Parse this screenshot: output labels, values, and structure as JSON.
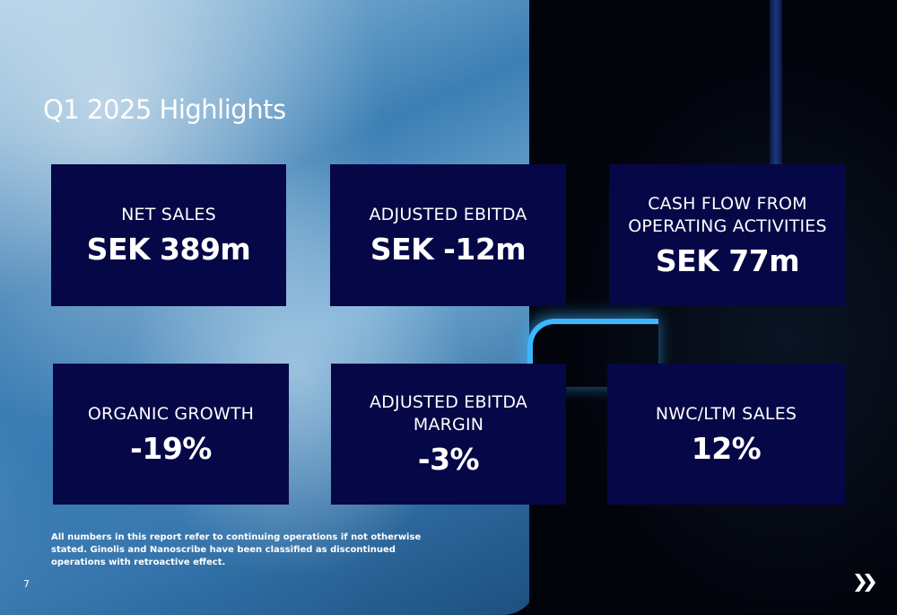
{
  "slide": {
    "title": "Q1 2025 Highlights",
    "page_number": "7",
    "footnote": "All numbers in this report refer to continuing operations if not otherwise stated. Ginolis and Nanoscribe have been classified as discontinued operations with retroactive effect."
  },
  "cards": [
    {
      "label": "NET SALES",
      "value": "SEK 389m"
    },
    {
      "label": "ADJUSTED EBITDA",
      "value": "SEK -12m"
    },
    {
      "label": "CASH FLOW FROM OPERATING ACTIVITIES",
      "value": "SEK 77m"
    },
    {
      "label": "ORGANIC GROWTH",
      "value": "-19%"
    },
    {
      "label": "ADJUSTED EBITDA MARGIN",
      "value": "-3%"
    },
    {
      "label": "NWC/LTM SALES",
      "value": "12%"
    }
  ],
  "colors": {
    "card_background": "#050746",
    "text": "#ffffff",
    "accent_glow": "#3bb7ff"
  },
  "icons": {
    "next": "double-chevron-right-icon"
  }
}
